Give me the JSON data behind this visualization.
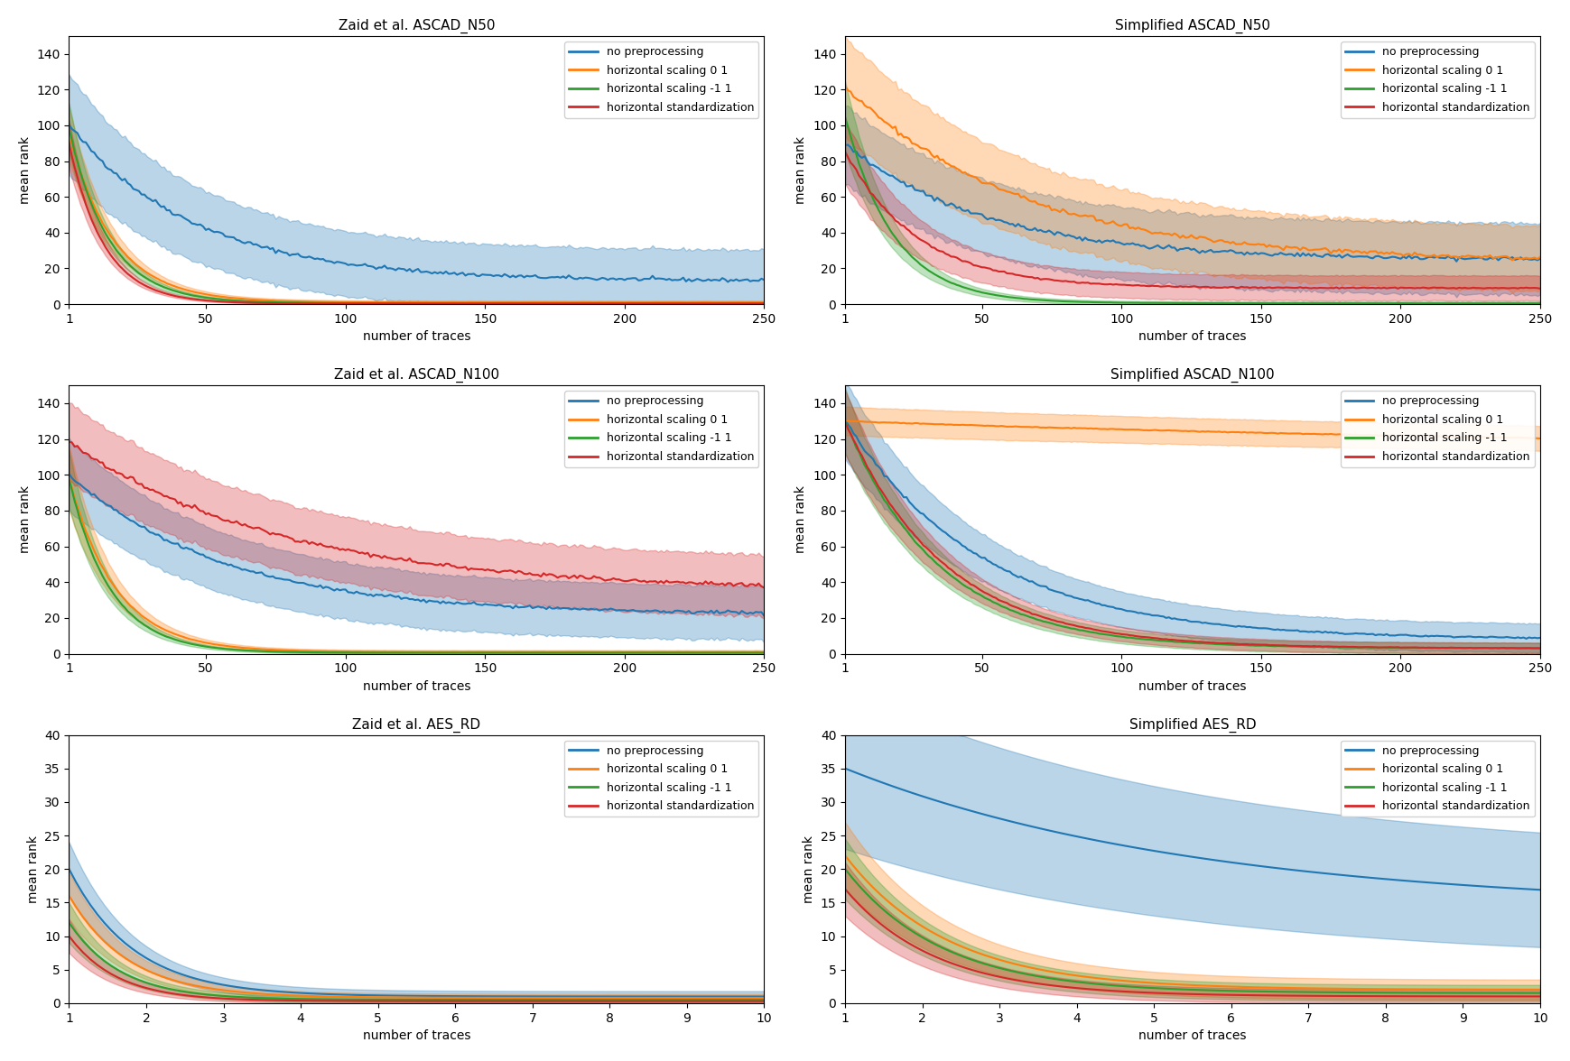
{
  "subplots": [
    {
      "title": "Zaid et al. ASCAD_N50",
      "xlim": [
        1,
        250
      ],
      "ylim": [
        0,
        150
      ],
      "xticks": [
        1,
        50,
        100,
        150,
        200,
        250
      ],
      "yticks": [
        0,
        20,
        40,
        60,
        80,
        100,
        120,
        140
      ],
      "short": false,
      "series": [
        {
          "label": "no preprocessing",
          "color": "#1f77b4",
          "mean_s": 100,
          "mean_e": 13,
          "std_s": 28,
          "std_e": 17,
          "k": 0.022,
          "noise": 0.06
        },
        {
          "label": "horizontal scaling 0 1",
          "color": "#ff7f0e",
          "mean_s": 95,
          "mean_e": 1,
          "std_s": 15,
          "std_e": 1,
          "k": 0.062,
          "noise": 0.04
        },
        {
          "label": "horizontal scaling -1 1",
          "color": "#2ca02c",
          "mean_s": 98,
          "mean_e": 0.5,
          "std_s": 14,
          "std_e": 0.5,
          "k": 0.07,
          "noise": 0.04
        },
        {
          "label": "horizontal standardization",
          "color": "#d62728",
          "mean_s": 90,
          "mean_e": 0.3,
          "std_s": 13,
          "std_e": 0.3,
          "k": 0.08,
          "noise": 0.04
        }
      ]
    },
    {
      "title": "Simplified ASCAD_N50",
      "xlim": [
        1,
        250
      ],
      "ylim": [
        0,
        150
      ],
      "xticks": [
        1,
        50,
        100,
        150,
        200,
        250
      ],
      "yticks": [
        0,
        20,
        40,
        60,
        80,
        100,
        120,
        140
      ],
      "short": false,
      "series": [
        {
          "label": "no preprocessing",
          "color": "#1f77b4",
          "mean_s": 90,
          "mean_e": 25,
          "std_s": 22,
          "std_e": 20,
          "k": 0.02,
          "noise": 0.06
        },
        {
          "label": "horizontal scaling 0 1",
          "color": "#ff7f0e",
          "mean_s": 122,
          "mean_e": 24,
          "std_s": 28,
          "std_e": 18,
          "k": 0.016,
          "noise": 0.06
        },
        {
          "label": "horizontal scaling -1 1",
          "color": "#2ca02c",
          "mean_s": 105,
          "mean_e": 0.5,
          "std_s": 20,
          "std_e": 1,
          "k": 0.058,
          "noise": 0.04
        },
        {
          "label": "horizontal standardization",
          "color": "#d62728",
          "mean_s": 85,
          "mean_e": 9,
          "std_s": 18,
          "std_e": 7,
          "k": 0.038,
          "noise": 0.05
        }
      ]
    },
    {
      "title": "Zaid et al. ASCAD_N100",
      "xlim": [
        1,
        250
      ],
      "ylim": [
        0,
        150
      ],
      "xticks": [
        1,
        50,
        100,
        150,
        200,
        250
      ],
      "yticks": [
        0,
        20,
        40,
        60,
        80,
        100,
        120,
        140
      ],
      "short": false,
      "series": [
        {
          "label": "no preprocessing",
          "color": "#1f77b4",
          "mean_s": 100,
          "mean_e": 22,
          "std_s": 20,
          "std_e": 15,
          "k": 0.018,
          "noise": 0.06
        },
        {
          "label": "horizontal scaling 0 1",
          "color": "#ff7f0e",
          "mean_s": 98,
          "mean_e": 1,
          "std_s": 18,
          "std_e": 1,
          "k": 0.06,
          "noise": 0.04
        },
        {
          "label": "horizontal scaling -1 1",
          "color": "#2ca02c",
          "mean_s": 98,
          "mean_e": 0.5,
          "std_s": 16,
          "std_e": 0.5,
          "k": 0.068,
          "noise": 0.04
        },
        {
          "label": "horizontal standardization",
          "color": "#d62728",
          "mean_s": 118,
          "mean_e": 35,
          "std_s": 22,
          "std_e": 17,
          "k": 0.013,
          "noise": 0.06
        }
      ]
    },
    {
      "title": "Simplified ASCAD_N100",
      "xlim": [
        1,
        250
      ],
      "ylim": [
        0,
        150
      ],
      "xticks": [
        1,
        50,
        100,
        150,
        200,
        250
      ],
      "yticks": [
        0,
        20,
        40,
        60,
        80,
        100,
        120,
        140
      ],
      "short": false,
      "series": [
        {
          "label": "no preprocessing",
          "color": "#1f77b4",
          "mean_s": 130,
          "mean_e": 8,
          "std_s": 22,
          "std_e": 8,
          "k": 0.02,
          "noise": 0.05
        },
        {
          "label": "horizontal scaling 0 1",
          "color": "#ff7f0e",
          "mean_s": 130,
          "mean_e": 112,
          "std_s": 8,
          "std_e": 6,
          "k": 0.003,
          "noise": 0.03
        },
        {
          "label": "horizontal scaling -1 1",
          "color": "#2ca02c",
          "mean_s": 130,
          "mean_e": 3,
          "std_s": 18,
          "std_e": 3,
          "k": 0.03,
          "noise": 0.04
        },
        {
          "label": "horizontal standardization",
          "color": "#d62728",
          "mean_s": 130,
          "mean_e": 3,
          "std_s": 18,
          "std_e": 3,
          "k": 0.028,
          "noise": 0.04
        }
      ]
    },
    {
      "title": "Zaid et al. AES_RD",
      "xlim": [
        1,
        10
      ],
      "ylim": [
        0,
        40
      ],
      "xticks": [
        1,
        2,
        3,
        4,
        5,
        6,
        7,
        8,
        9,
        10
      ],
      "yticks": [
        0,
        5,
        10,
        15,
        20,
        25,
        30,
        35,
        40
      ],
      "short": true,
      "series": [
        {
          "label": "no preprocessing",
          "color": "#1f77b4",
          "mean_s": 20,
          "mean_e": 1.0,
          "std_s": 4,
          "std_e": 0.8,
          "k": 1.2
        },
        {
          "label": "horizontal scaling 0 1",
          "color": "#ff7f0e",
          "mean_s": 16,
          "mean_e": 0.8,
          "std_s": 3.5,
          "std_e": 0.6,
          "k": 1.3
        },
        {
          "label": "horizontal scaling -1 1",
          "color": "#2ca02c",
          "mean_s": 12,
          "mean_e": 0.5,
          "std_s": 3,
          "std_e": 0.4,
          "k": 1.5
        },
        {
          "label": "horizontal standardization",
          "color": "#d62728",
          "mean_s": 10,
          "mean_e": 0.3,
          "std_s": 2.5,
          "std_e": 0.3,
          "k": 1.6
        }
      ]
    },
    {
      "title": "Simplified AES_RD",
      "xlim": [
        1,
        10
      ],
      "ylim": [
        0,
        40
      ],
      "xticks": [
        1,
        2,
        3,
        4,
        5,
        6,
        7,
        8,
        9,
        10
      ],
      "yticks": [
        0,
        5,
        10,
        15,
        20,
        25,
        30,
        35,
        40
      ],
      "short": true,
      "series": [
        {
          "label": "no preprocessing",
          "color": "#1f77b4",
          "mean_s": 35,
          "mean_e": 14,
          "std_s": 12,
          "std_e": 8,
          "k": 0.22
        },
        {
          "label": "horizontal scaling 0 1",
          "color": "#ff7f0e",
          "mean_s": 22,
          "mean_e": 2,
          "std_s": 5,
          "std_e": 1.5,
          "k": 0.75
        },
        {
          "label": "horizontal scaling -1 1",
          "color": "#2ca02c",
          "mean_s": 20,
          "mean_e": 1.5,
          "std_s": 4.5,
          "std_e": 1.2,
          "k": 0.8
        },
        {
          "label": "horizontal standardization",
          "color": "#d62728",
          "mean_s": 17,
          "mean_e": 1,
          "std_s": 4,
          "std_e": 1,
          "k": 0.85
        }
      ]
    }
  ],
  "legend_labels": [
    "no preprocessing",
    "horizontal scaling 0 1",
    "horizontal scaling -1 1",
    "horizontal standardization"
  ],
  "legend_colors": [
    "#1f77b4",
    "#ff7f0e",
    "#2ca02c",
    "#d62728"
  ],
  "xlabel": "number of traces",
  "ylabel": "mean rank"
}
